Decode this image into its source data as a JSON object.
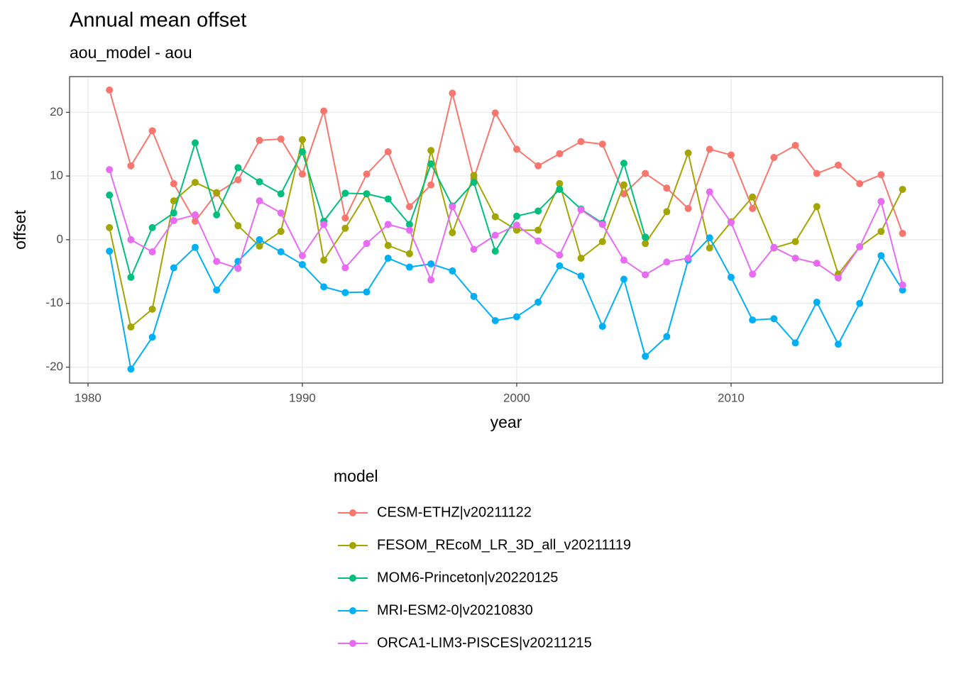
{
  "chart_data": {
    "type": "line",
    "title": "Annual mean offset",
    "subtitle": "aou_model - aou",
    "x_label": "year",
    "y_label": "offset",
    "legend_title": "model",
    "legend_position": "bottom",
    "grid": true,
    "x": [
      1981,
      1982,
      1983,
      1984,
      1985,
      1986,
      1987,
      1988,
      1989,
      1990,
      1991,
      1992,
      1993,
      1994,
      1995,
      1996,
      1997,
      1998,
      1999,
      2000,
      2001,
      2002,
      2003,
      2004,
      2005,
      2006,
      2007,
      2008,
      2009,
      2010,
      2011,
      2012,
      2013,
      2014,
      2015,
      2016,
      2017,
      2018
    ],
    "xlim": [
      1979.14,
      2019.87
    ],
    "xticks": [
      1980,
      1990,
      2000,
      2010
    ],
    "ylim": [
      -22.5,
      25.6
    ],
    "yticks": [
      -20,
      -10,
      0,
      10,
      20
    ],
    "series": [
      {
        "name": "CESM-ETHZ|v20211122",
        "color": "#F8766D",
        "values": [
          23.5,
          11.6,
          17.1,
          8.8,
          2.9,
          7.3,
          9.4,
          15.6,
          15.8,
          10.3,
          20.2,
          3.4,
          10.3,
          13.8,
          5.2,
          8.6,
          23.0,
          9.6,
          19.9,
          14.2,
          11.6,
          13.5,
          15.4,
          15.0,
          7.2,
          10.4,
          8.1,
          4.9,
          14.2,
          13.3,
          4.9,
          12.9,
          14.8,
          10.4,
          11.7,
          8.8,
          10.2,
          1.0
        ]
      },
      {
        "name": "FESOM_REcoM_LR_3D_all_v20211119",
        "color": "#A3A500",
        "values": [
          1.9,
          -13.7,
          -10.9,
          6.1,
          9.0,
          7.4,
          2.2,
          -1.0,
          1.3,
          15.7,
          -3.2,
          1.8,
          7.2,
          -0.9,
          -2.2,
          14.0,
          1.1,
          10.1,
          3.6,
          1.5,
          1.5,
          8.8,
          -2.9,
          -0.3,
          8.6,
          -0.6,
          4.4,
          13.6,
          -1.3,
          2.8,
          6.7,
          -1.3,
          -0.3,
          5.2,
          -5.4,
          -1.1,
          1.3,
          7.9
        ]
      },
      {
        "name": "MOM6-Princeton|v20220125",
        "color": "#00BF7D",
        "values": [
          7.0,
          -5.9,
          1.9,
          4.2,
          15.2,
          3.9,
          11.3,
          9.1,
          7.2,
          13.8,
          2.9,
          7.3,
          7.2,
          6.4,
          2.4,
          11.9,
          5.3,
          9.0,
          -1.8,
          3.7,
          4.5,
          7.9,
          4.8,
          2.6,
          12.0,
          0.4,
          null,
          null,
          null,
          null,
          null,
          null,
          null,
          null,
          null,
          null,
          null,
          null
        ]
      },
      {
        "name": "MRI-ESM2-0|v20210830",
        "color": "#00B0F6",
        "values": [
          -1.8,
          -20.3,
          -15.3,
          -4.4,
          -1.2,
          -7.9,
          -3.4,
          0.0,
          -1.9,
          -3.9,
          -7.4,
          -8.3,
          -8.2,
          -2.9,
          -4.3,
          -3.8,
          -4.9,
          -8.9,
          -12.7,
          -12.1,
          -9.8,
          -4.1,
          -5.7,
          -13.6,
          -6.2,
          -18.3,
          -15.2,
          -3.2,
          0.3,
          -5.9,
          -12.6,
          -12.4,
          -16.2,
          -9.8,
          -16.4,
          -10.0,
          -2.5,
          -7.9
        ]
      },
      {
        "name": "ORCA1-LIM3-PISCES|v20211215",
        "color": "#E76BF3",
        "values": [
          11.0,
          0.0,
          -1.9,
          3.0,
          3.9,
          -3.4,
          -4.5,
          6.1,
          4.2,
          -2.5,
          2.4,
          -4.4,
          -0.6,
          2.4,
          1.5,
          -6.3,
          5.2,
          -1.5,
          0.7,
          2.3,
          -0.2,
          -2.4,
          4.7,
          2.4,
          -3.2,
          -5.5,
          -3.5,
          -2.9,
          7.5,
          2.7,
          -5.4,
          -1.2,
          -2.9,
          -3.7,
          -6.0,
          -1.1,
          6.0,
          -7.1
        ]
      }
    ]
  }
}
